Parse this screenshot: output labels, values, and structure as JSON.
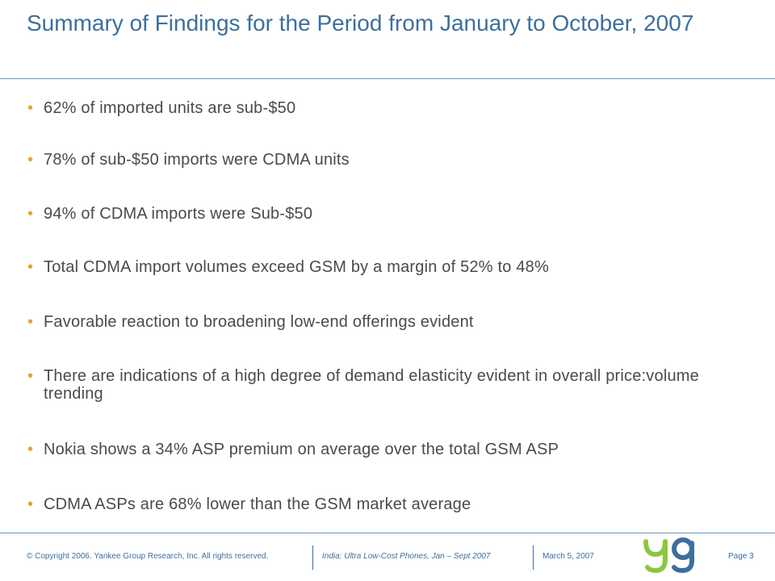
{
  "slide": {
    "title": "Summary of Findings for the Period from January to October, 2007"
  },
  "bullets": [
    "62% of imported units are sub-$50",
    "78% of sub-$50 imports were CDMA units",
    "94% of CDMA imports were Sub-$50",
    "Total CDMA import volumes exceed GSM by a margin of 52% to 48%",
    "Favorable reaction to broadening low-end offerings evident",
    "There are indications of a high degree of demand elasticity evident in overall price:volume trending",
    "Nokia shows a 34% ASP premium on average over the total GSM ASP",
    "CDMA ASPs are 68% lower than the GSM market average"
  ],
  "footer": {
    "copyright": "© Copyright 2006. Yankee Group Research, Inc. All rights reserved.",
    "report": "India: Ultra Low-Cost Phones, Jan – Sept 2007",
    "date": "March 5, 2007",
    "page": "Page 3",
    "logo_icon": "yankee-group-logo-icon",
    "colors": {
      "title": "#3d6f9e",
      "bullet": "#e8a33b",
      "logo_y": "#8dc63f",
      "logo_g": "#3d6f9e"
    }
  }
}
